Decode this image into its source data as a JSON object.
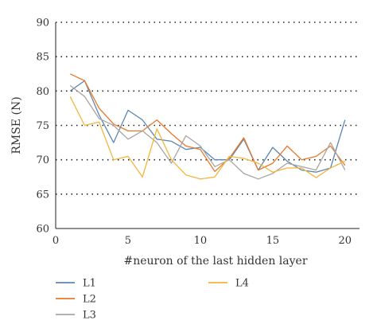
{
  "chart_data": {
    "type": "line",
    "xlabel": "#neuron of the last hidden layer",
    "ylabel": "RMSE (N)",
    "xlim": [
      0,
      21
    ],
    "ylim": [
      60,
      90
    ],
    "xticks": [
      0,
      5,
      10,
      15,
      20
    ],
    "yticks": [
      60,
      65,
      70,
      75,
      80,
      85,
      90
    ],
    "grid": "horizontal-dotted",
    "legend_placement": "bottom",
    "x": [
      1,
      2,
      3,
      4,
      5,
      6,
      7,
      8,
      9,
      10,
      11,
      12,
      13,
      14,
      15,
      16,
      17,
      18,
      19,
      20
    ],
    "series": [
      {
        "name": "L1",
        "color": "#5b87b5",
        "values": [
          80.0,
          81.5,
          76.5,
          72.5,
          77.2,
          75.8,
          73.0,
          72.7,
          71.5,
          71.8,
          70.0,
          70.0,
          73.0,
          68.5,
          71.8,
          69.8,
          68.5,
          68.2,
          68.8,
          75.8
        ]
      },
      {
        "name": "L2",
        "color": "#e8792a",
        "values": [
          82.5,
          81.5,
          77.5,
          75.2,
          74.2,
          74.2,
          75.8,
          73.8,
          72.0,
          71.5,
          68.3,
          70.2,
          73.2,
          68.5,
          69.5,
          72.0,
          70.0,
          70.5,
          72.0,
          69.2
        ]
      },
      {
        "name": "L3",
        "color": "#a9a4a3",
        "values": [
          80.8,
          79.2,
          76.0,
          75.0,
          73.0,
          74.2,
          72.5,
          69.5,
          73.5,
          72.0,
          69.0,
          70.0,
          68.0,
          67.2,
          68.0,
          69.5,
          69.0,
          68.5,
          72.5,
          68.5
        ]
      },
      {
        "name": "L4",
        "color": "#f4b63b",
        "values": [
          79.2,
          75.0,
          75.5,
          70.0,
          70.5,
          67.5,
          74.5,
          70.0,
          67.8,
          67.2,
          67.5,
          70.5,
          70.2,
          69.5,
          68.2,
          68.8,
          68.8,
          67.4,
          68.8,
          69.8
        ]
      }
    ]
  }
}
